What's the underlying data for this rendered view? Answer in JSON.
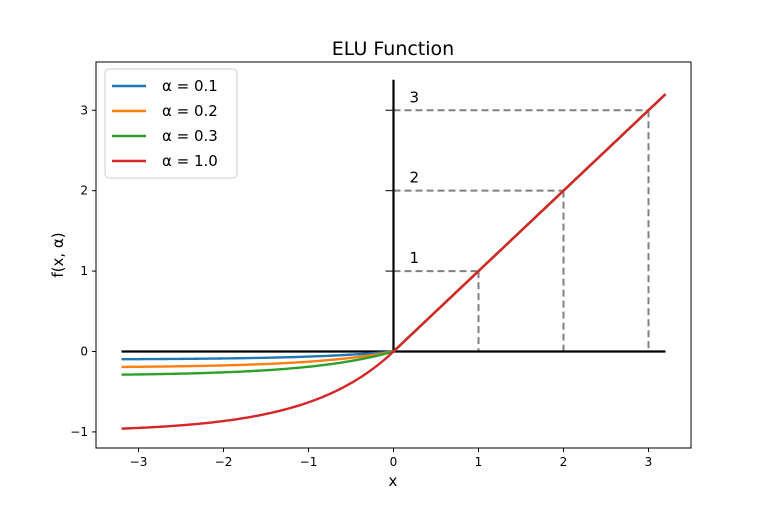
{
  "chart_data": {
    "type": "line",
    "title": "ELU Function",
    "xlabel": "x",
    "ylabel": "f(x, α)",
    "xlim": [
      -3.5,
      3.5
    ],
    "ylim": [
      -1.2,
      3.6
    ],
    "xticks": [
      -3,
      -2,
      -1,
      0,
      1,
      2,
      3
    ],
    "xtick_labels": [
      "−3",
      "−2",
      "−1",
      "0",
      "1",
      "2",
      "3"
    ],
    "yticks": [
      -1,
      0,
      1,
      2,
      3
    ],
    "ytick_labels": [
      "−1",
      "0",
      "1",
      "2",
      "3"
    ],
    "grid": false,
    "legend_position": "top-left",
    "x_domain": [
      -3.2,
      3.2
    ],
    "series": [
      {
        "name": "α = 0.1",
        "alpha": 0.1,
        "color": "#1f77b4"
      },
      {
        "name": "α = 0.2",
        "alpha": 0.2,
        "color": "#ff7f0e"
      },
      {
        "name": "α = 0.3",
        "alpha": 0.3,
        "color": "#2ca02c"
      },
      {
        "name": "α = 1.0",
        "alpha": 1.0,
        "color": "#d62728"
      }
    ],
    "annotations": [
      {
        "label": "1",
        "x": 1,
        "y": 1
      },
      {
        "label": "2",
        "x": 2,
        "y": 2
      },
      {
        "label": "3",
        "x": 3,
        "y": 3
      }
    ]
  }
}
